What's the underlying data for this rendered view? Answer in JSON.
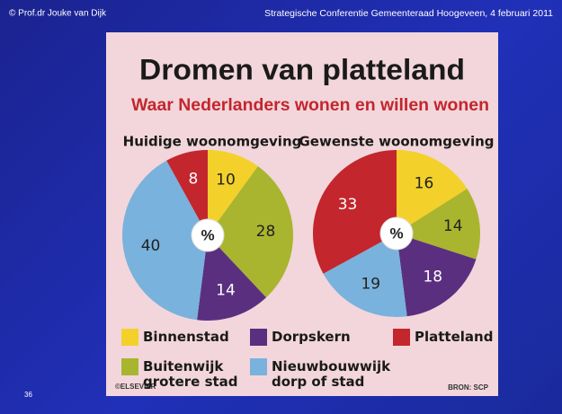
{
  "header": {
    "author": "© Prof.dr Jouke van Dijk",
    "event": "Strategische Conferentie Gemeenteraad Hoogeveen, 4 februari 2011"
  },
  "slide_number": "36",
  "clipping": {
    "title": "Dromen van platteland",
    "subtitle": "Waar Nederlanders wonen en willen wonen",
    "publisher": "©ELSEVIER",
    "source": "BRON: SCP"
  },
  "chart_data": [
    {
      "type": "pie",
      "title": "Huidige woonomgeving",
      "unit": "%",
      "categories": [
        "Binnenstad",
        "Buitenwijk grotere stad",
        "Dorpskern",
        "Nieuwbouwwijk dorp of stad",
        "Platteland"
      ],
      "values": [
        10,
        28,
        14,
        40,
        8
      ],
      "colors": [
        "#f3d12a",
        "#a9b52e",
        "#5b2f80",
        "#79b2dc",
        "#c3262d"
      ]
    },
    {
      "type": "pie",
      "title": "Gewenste woonomgeving",
      "unit": "%",
      "categories": [
        "Binnenstad",
        "Buitenwijk grotere stad",
        "Dorpskern",
        "Nieuwbouwwijk dorp of stad",
        "Platteland"
      ],
      "values": [
        16,
        14,
        18,
        19,
        33
      ],
      "colors": [
        "#f3d12a",
        "#a9b52e",
        "#5b2f80",
        "#79b2dc",
        "#c3262d"
      ]
    }
  ]
}
